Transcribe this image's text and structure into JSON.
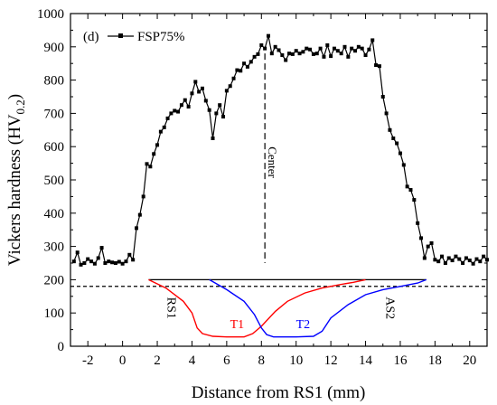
{
  "panel_label": "(d)",
  "chart_data": {
    "type": "line",
    "title": "",
    "xlabel": "Distance from RS1 (mm)",
    "ylabel_main": "Vickers hardness (HV",
    "ylabel_sub": "0.2",
    "ylabel_close": ")",
    "xlim": [
      -3,
      21
    ],
    "ylim": [
      0,
      1000
    ],
    "xticks": [
      -2,
      0,
      2,
      4,
      6,
      8,
      10,
      12,
      14,
      16,
      18,
      20
    ],
    "yticks": [
      0,
      100,
      200,
      300,
      400,
      500,
      600,
      700,
      800,
      900,
      1000
    ],
    "grid": false,
    "legend_position": "top-left",
    "series": [
      {
        "name": "FSP75%",
        "color": "#000000",
        "marker": "square",
        "x": [
          -2.8,
          -2.6,
          -2.4,
          -2.2,
          -2.0,
          -1.8,
          -1.6,
          -1.4,
          -1.2,
          -1.0,
          -0.8,
          -0.6,
          -0.4,
          -0.2,
          0.0,
          0.2,
          0.4,
          0.6,
          0.8,
          1.0,
          1.2,
          1.4,
          1.6,
          1.8,
          2.0,
          2.2,
          2.4,
          2.6,
          2.8,
          3.0,
          3.2,
          3.4,
          3.6,
          3.8,
          4.0,
          4.2,
          4.4,
          4.6,
          4.8,
          5.0,
          5.2,
          5.4,
          5.6,
          5.8,
          6.0,
          6.2,
          6.4,
          6.6,
          6.8,
          7.0,
          7.2,
          7.4,
          7.6,
          7.8,
          8.0,
          8.2,
          8.4,
          8.6,
          8.8,
          9.0,
          9.2,
          9.4,
          9.6,
          9.8,
          10.0,
          10.2,
          10.4,
          10.6,
          10.8,
          11.0,
          11.2,
          11.4,
          11.6,
          11.8,
          12.0,
          12.2,
          12.4,
          12.6,
          12.8,
          13.0,
          13.2,
          13.4,
          13.6,
          13.8,
          14.0,
          14.2,
          14.4,
          14.6,
          14.8,
          15.0,
          15.2,
          15.4,
          15.6,
          15.8,
          16.0,
          16.2,
          16.4,
          16.6,
          16.8,
          17.0,
          17.2,
          17.4,
          17.6,
          17.8,
          18.0,
          18.2,
          18.4,
          18.6,
          18.8,
          19.0,
          19.2,
          19.4,
          19.6,
          19.8,
          20.0,
          20.2,
          20.4,
          20.6,
          20.8,
          21.0
        ],
        "y": [
          255,
          282,
          245,
          250,
          262,
          255,
          248,
          265,
          296,
          250,
          255,
          252,
          250,
          254,
          248,
          255,
          275,
          260,
          355,
          395,
          450,
          548,
          540,
          578,
          605,
          645,
          658,
          685,
          700,
          708,
          705,
          725,
          740,
          720,
          760,
          795,
          765,
          775,
          738,
          710,
          625,
          700,
          725,
          690,
          768,
          782,
          805,
          830,
          828,
          850,
          840,
          855,
          870,
          878,
          905,
          895,
          933,
          880,
          900,
          890,
          875,
          860,
          880,
          878,
          888,
          880,
          885,
          895,
          892,
          878,
          880,
          895,
          870,
          905,
          872,
          895,
          888,
          880,
          900,
          870,
          895,
          888,
          900,
          895,
          875,
          892,
          920,
          845,
          842,
          750,
          700,
          650,
          625,
          610,
          580,
          545,
          480,
          470,
          440,
          370,
          325,
          265,
          300,
          310,
          260,
          255,
          270,
          250,
          265,
          258,
          270,
          262,
          250,
          265,
          258,
          248,
          262,
          255,
          270,
          260
        ]
      }
    ],
    "annotations": [
      {
        "text": "Center",
        "x": 8.2
      },
      {
        "text": "RS1"
      },
      {
        "text": "T1",
        "color": "#ff0000"
      },
      {
        "text": "T2",
        "color": "#0000ff"
      },
      {
        "text": "AS2"
      }
    ],
    "lower_curves": [
      {
        "name": "T1",
        "color": "#ff0000",
        "x": [
          1.5,
          2.5,
          3.5,
          4.0,
          4.3,
          4.6,
          5.2,
          6.0,
          7.0,
          7.5,
          8.0,
          8.8,
          9.5,
          10.5,
          11.5,
          12.5,
          13.3,
          14.0
        ],
        "y": [
          200,
          175,
          135,
          100,
          55,
          38,
          30,
          28,
          28,
          38,
          60,
          105,
          135,
          160,
          175,
          185,
          192,
          200
        ]
      },
      {
        "name": "T2",
        "color": "#0000ff",
        "x": [
          5.0,
          6.0,
          7.0,
          7.6,
          8.0,
          8.3,
          8.7,
          9.2,
          10.0,
          11.0,
          11.5,
          12.0,
          13.0,
          14.0,
          15.0,
          16.0,
          17.0,
          17.5
        ],
        "y": [
          200,
          170,
          135,
          95,
          55,
          35,
          28,
          28,
          28,
          30,
          45,
          85,
          125,
          155,
          170,
          180,
          190,
          200
        ]
      }
    ],
    "reference_lines": [
      {
        "style": "solid",
        "y": 200,
        "x_from": 1.5,
        "x_to": 17.5
      },
      {
        "style": "dashed",
        "y": 180,
        "x_from": -3,
        "x_to": 21
      }
    ]
  }
}
